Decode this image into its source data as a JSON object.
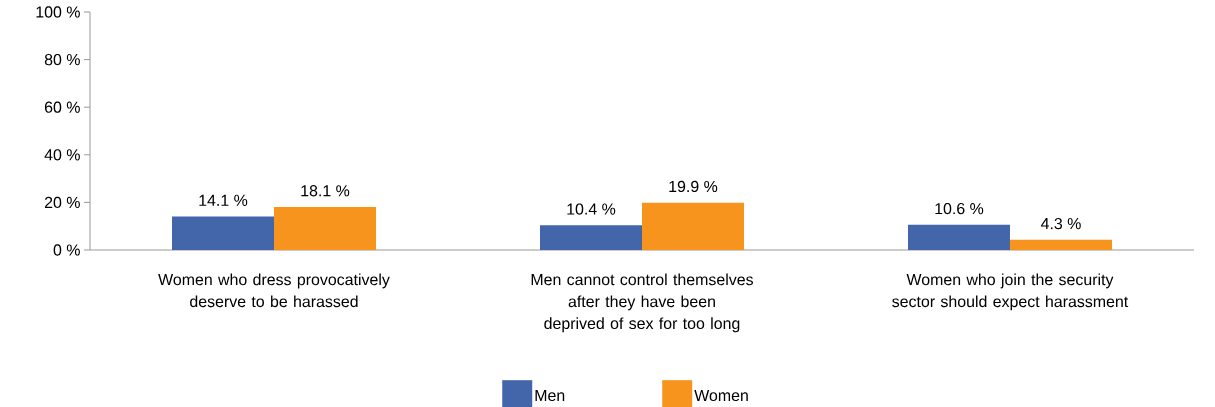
{
  "chart_data": {
    "type": "bar",
    "categories": [
      "Women who dress provocatively deserve to be harassed",
      "Men cannot control themselves after they have been deprived of sex for too long",
      "Women who join the security sector should expect harassment"
    ],
    "series": [
      {
        "name": "Men",
        "color": "#4266a9",
        "values": [
          14.1,
          10.4,
          10.6
        ],
        "value_labels": [
          "14.1 %",
          "10.4 %",
          "10.6 %"
        ]
      },
      {
        "name": "Women",
        "color": "#f7941d",
        "values": [
          18.1,
          19.9,
          4.3
        ],
        "value_labels": [
          "18.1 %",
          "19.9 %",
          "4.3 %"
        ]
      }
    ],
    "ylim": [
      0,
      100
    ],
    "yticks": [
      {
        "value": 0,
        "label": "0 %"
      },
      {
        "value": 20,
        "label": "20 %"
      },
      {
        "value": 40,
        "label": "40 %"
      },
      {
        "value": 60,
        "label": "60 %"
      },
      {
        "value": 80,
        "label": "80 %"
      },
      {
        "value": 100,
        "label": "100 %"
      }
    ],
    "grid": false,
    "legend": "bottom"
  }
}
